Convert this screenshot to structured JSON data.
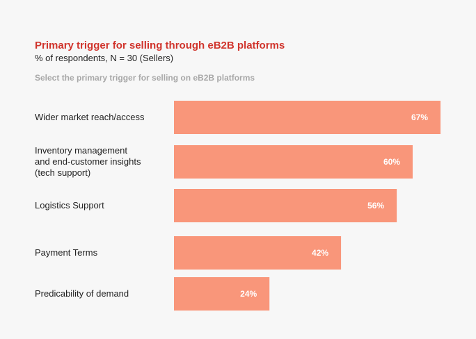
{
  "chart_data": {
    "type": "bar",
    "orientation": "horizontal",
    "title": "Primary trigger for selling through eB2B platforms",
    "subtitle": "% of respondents, N =  30 (Sellers)",
    "question": "Select the primary trigger for selling on eB2B platforms",
    "categories": [
      [
        "Wider market reach/access"
      ],
      [
        "Inventory management",
        "and end-customer insights",
        "(tech support)"
      ],
      [
        "Logistics Support"
      ],
      [
        "Payment Terms"
      ],
      [
        "Predicability of demand"
      ]
    ],
    "values": [
      67,
      60,
      56,
      42,
      24
    ],
    "value_labels": [
      "67%",
      "60%",
      "56%",
      "42%",
      "24%"
    ],
    "xlim": [
      0,
      100
    ],
    "grid": false,
    "legend": "none",
    "bar_color": "#f9967a",
    "title_color": "#d0342c"
  }
}
